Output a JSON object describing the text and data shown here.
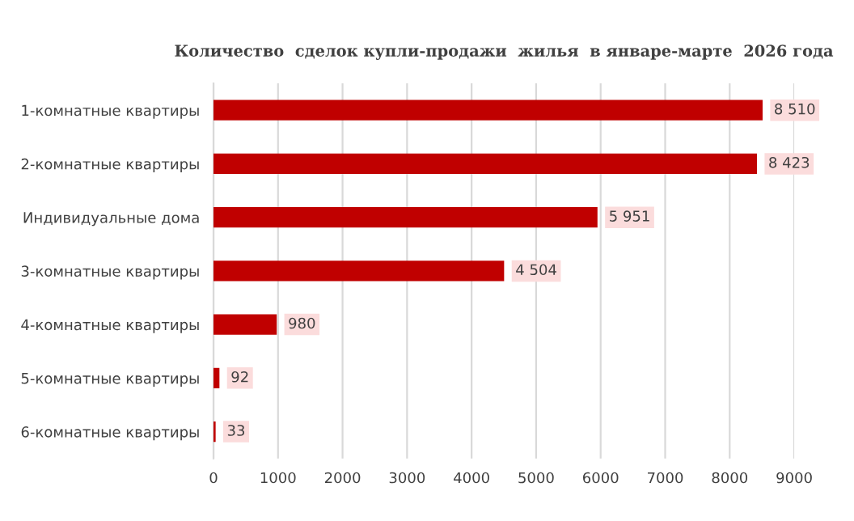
{
  "chart_data": {
    "type": "bar",
    "orientation": "horizontal",
    "title": "Количество  сделок купли-продажи  жилья  в январе-марте  2026 года",
    "categories": [
      "1-комнатные квартиры",
      "2-комнатные квартиры",
      "Индивидуальные дома",
      "3-комнатные квартиры",
      "4-комнатные квартиры",
      "5-комнатные квартиры",
      "6-комнатные квартиры"
    ],
    "values": [
      8510,
      8423,
      5951,
      4504,
      980,
      92,
      33
    ],
    "value_labels": [
      "8 510",
      "8 423",
      "5 951",
      "4 504",
      "980",
      "92",
      "33"
    ],
    "color": "#c00000",
    "xlim": [
      0,
      9000
    ],
    "xticks": [
      0,
      1000,
      2000,
      3000,
      4000,
      5000,
      6000,
      7000,
      8000,
      9000
    ],
    "grid": "x"
  }
}
